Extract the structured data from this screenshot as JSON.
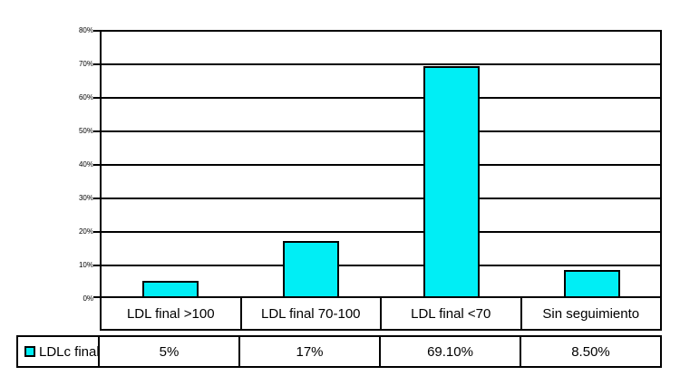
{
  "chart_data": {
    "type": "bar",
    "title": "",
    "series_name": "LDLc final",
    "categories": [
      "LDL final >100",
      "LDL final 70-100",
      "LDL final <70",
      "Sin seguimiento"
    ],
    "values": [
      5,
      17,
      69.1,
      8.5
    ],
    "value_labels": [
      "5%",
      "17%",
      "69.10%",
      "8.50%"
    ],
    "ylim": [
      0,
      80
    ],
    "ytick_step": 10,
    "ytick_labels": [
      "80%",
      "70%",
      "60%",
      "50%",
      "40%",
      "30%",
      "20%",
      "10%",
      "0%"
    ],
    "grid": "horizontal gridlines on",
    "legend_position": "data table bottom-left cell",
    "bar_color": "#00EEF5",
    "bar_border_color": "#000000",
    "background_color": "#FFFFFF"
  }
}
